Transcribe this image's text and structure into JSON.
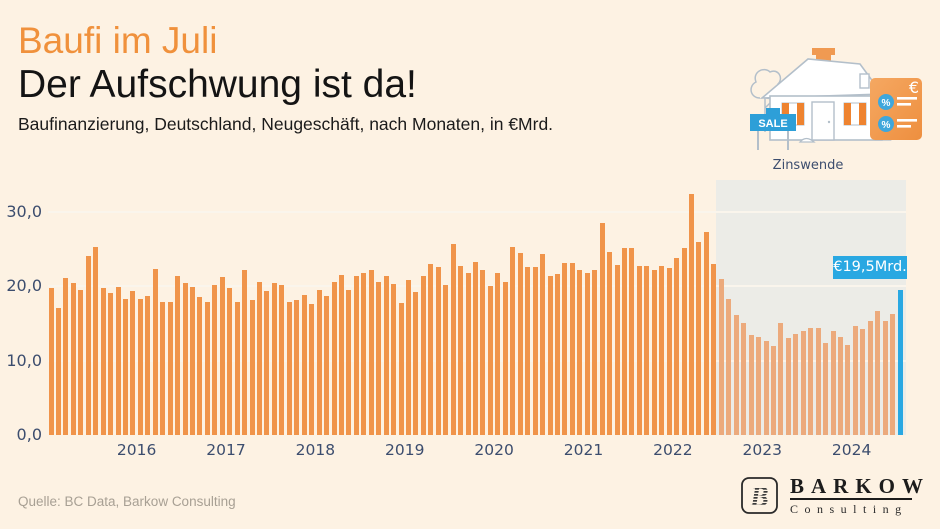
{
  "header": {
    "kicker": "Baufi im Juli",
    "title": "Der Aufschwung ist da!",
    "subtitle": "Baufinanzierung, Deutschland, Neugeschäft, nach Monaten, in €Mrd."
  },
  "annotation": {
    "region_label": "Zinswende",
    "value_label": "€19,5Mrd."
  },
  "footer": {
    "source": "Quelle: BC Data, Barkow Consulting",
    "logo_name": "BARKOW",
    "logo_sub": "Consulting"
  },
  "colors": {
    "background": "#fdf2e3",
    "accent_orange": "#f0913c",
    "bar_orange": "#f0944a",
    "bar_faded": "#ecaa7c",
    "highlight_blue": "#29a8e2",
    "navy_text": "#3c4d6e",
    "region_gray": "#ecece7"
  },
  "chart_data": {
    "type": "bar",
    "title": "Baufinanzierung, Deutschland, Neugeschäft, nach Monaten, in €Mrd.",
    "unit": "€Mrd.",
    "start_month": "2015-01",
    "end_month": "2024-07",
    "ylim": [
      0,
      33.5
    ],
    "grid": true,
    "y_axis": {
      "tick_values": [
        30,
        20,
        10,
        0
      ],
      "tick_labels": [
        "30,0",
        "20,0",
        "10,0",
        "0,0"
      ]
    },
    "x_axis": {
      "year_labels": [
        "2016",
        "2017",
        "2018",
        "2019",
        "2020",
        "2021",
        "2022",
        "2023",
        "2024"
      ]
    },
    "highlight_region": {
      "label": "Zinswende",
      "from_month": "2022-07",
      "to_month": "2024-07"
    },
    "highlight_bar": {
      "month": "2024-07",
      "value": 19.5,
      "label": "€19,5Mrd."
    },
    "series": [
      {
        "name": "Baufinanzierung Neugeschäft",
        "values_by_year": {
          "2015": [
            19.7,
            17.0,
            21.1,
            20.4,
            19.5,
            24.0,
            25.3,
            19.7,
            19.0,
            19.8,
            18.3,
            19.3
          ],
          "2016": [
            18.2,
            18.6,
            22.3,
            17.9,
            17.8,
            21.3,
            20.4,
            19.8,
            18.5,
            17.8,
            20.2,
            21.2
          ],
          "2017": [
            19.7,
            17.8,
            22.1,
            18.1,
            20.5,
            19.3,
            20.4,
            20.2,
            17.9,
            18.1,
            18.8,
            17.6
          ],
          "2018": [
            19.5,
            18.7,
            20.6,
            21.5,
            19.4,
            21.4,
            21.8,
            22.2,
            20.5,
            21.4,
            20.3,
            17.7
          ],
          "2019": [
            20.8,
            19.2,
            21.3,
            23.0,
            22.6,
            20.1,
            25.6,
            22.7,
            21.7,
            23.2,
            22.1,
            20.0
          ],
          "2020": [
            21.8,
            20.5,
            25.3,
            24.4,
            22.5,
            22.6,
            24.3,
            21.3,
            21.6,
            23.1,
            23.1,
            22.1
          ],
          "2021": [
            21.7,
            22.1,
            28.5,
            24.6,
            22.8,
            25.1,
            25.1,
            22.7,
            22.7,
            22.2,
            22.7,
            22.4
          ],
          "2022": [
            23.8,
            25.1,
            32.3,
            25.9,
            27.3,
            23.0,
            20.9,
            18.3,
            16.1,
            15.0,
            13.4,
            13.1
          ],
          "2023": [
            12.6,
            11.9,
            15.1,
            13.0,
            13.6,
            13.9,
            14.3,
            14.3,
            12.4,
            13.9,
            13.2,
            12.1
          ],
          "2024": [
            14.6,
            14.2,
            15.3,
            16.7,
            15.3,
            16.3,
            19.5
          ]
        }
      }
    ]
  }
}
